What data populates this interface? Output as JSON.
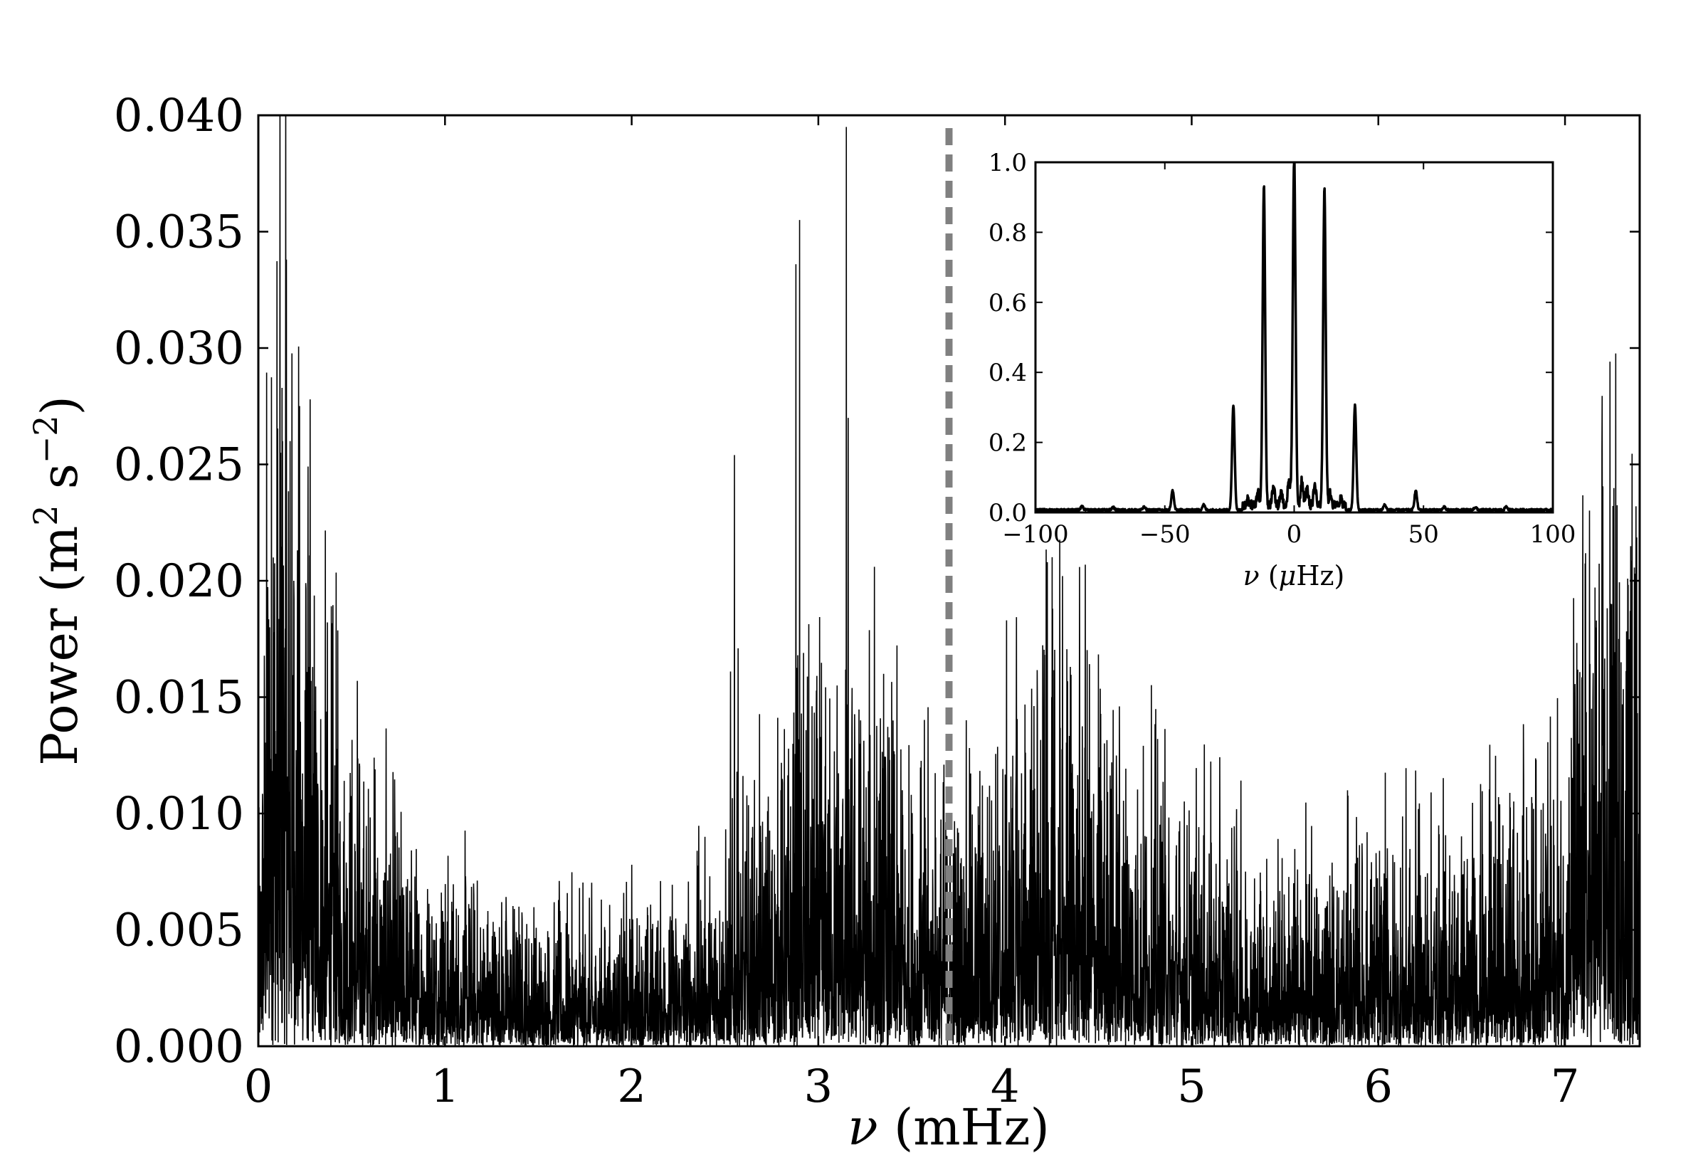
{
  "chart_data": [
    {
      "type": "line",
      "role": "main",
      "title": "",
      "xlabel": {
        "symbol": "ν",
        "rest": " (mHz)"
      },
      "ylabel": {
        "prefix": "Power (m",
        "sup1": "2",
        "mid": " s",
        "sup2": "−2",
        "suffix": ")"
      },
      "xlim": [
        0,
        7.4
      ],
      "ylim": [
        0,
        0.04
      ],
      "xticks": [
        0,
        1,
        2,
        3,
        4,
        5,
        6,
        7
      ],
      "xtick_labels": [
        "0",
        "1",
        "2",
        "3",
        "4",
        "5",
        "6",
        "7"
      ],
      "yticks": [
        0,
        0.005,
        0.01,
        0.015,
        0.02,
        0.025,
        0.03,
        0.035,
        0.04
      ],
      "ytick_labels": [
        "0.000",
        "0.005",
        "0.010",
        "0.015",
        "0.020",
        "0.025",
        "0.030",
        "0.035",
        "0.040"
      ],
      "grid": false,
      "line_color": "#000000",
      "marker_line": {
        "x": 3.7,
        "style": "dashed",
        "color": "#808080"
      },
      "envelope": [
        [
          0.0,
          0.002
        ],
        [
          0.05,
          0.01
        ],
        [
          0.1,
          0.012
        ],
        [
          0.2,
          0.009
        ],
        [
          0.35,
          0.006
        ],
        [
          0.55,
          0.004
        ],
        [
          0.8,
          0.0028
        ],
        [
          1.2,
          0.0022
        ],
        [
          1.6,
          0.0018
        ],
        [
          2.0,
          0.0018
        ],
        [
          2.3,
          0.0022
        ],
        [
          2.6,
          0.003
        ],
        [
          2.9,
          0.0045
        ],
        [
          3.2,
          0.005
        ],
        [
          3.5,
          0.0038
        ],
        [
          3.8,
          0.0035
        ],
        [
          4.1,
          0.005
        ],
        [
          4.35,
          0.0055
        ],
        [
          4.6,
          0.0045
        ],
        [
          5.0,
          0.0032
        ],
        [
          5.5,
          0.0025
        ],
        [
          6.0,
          0.0028
        ],
        [
          6.3,
          0.003
        ],
        [
          6.7,
          0.0032
        ],
        [
          7.0,
          0.004
        ],
        [
          7.05,
          0.006
        ],
        [
          7.2,
          0.008
        ],
        [
          7.4,
          0.008
        ]
      ],
      "peaks": [
        [
          0.06,
          0.018
        ],
        [
          0.08,
          0.021
        ],
        [
          0.1,
          0.023
        ],
        [
          0.12,
          0.0255
        ],
        [
          0.13,
          0.026
        ],
        [
          0.15,
          0.0338
        ],
        [
          0.17,
          0.026
        ],
        [
          0.19,
          0.02
        ],
        [
          0.22,
          0.0188
        ],
        [
          0.25,
          0.0153
        ],
        [
          0.3,
          0.012
        ],
        [
          0.34,
          0.011
        ],
        [
          0.4,
          0.0095
        ],
        [
          0.46,
          0.0098
        ],
        [
          0.5,
          0.01
        ],
        [
          0.53,
          0.0157
        ],
        [
          0.62,
          0.0124
        ],
        [
          0.7,
          0.0078
        ],
        [
          0.78,
          0.0065
        ],
        [
          0.98,
          0.0066
        ],
        [
          1.4,
          0.0048
        ],
        [
          1.72,
          0.0068
        ],
        [
          2.0,
          0.0078
        ],
        [
          2.2,
          0.005
        ],
        [
          2.45,
          0.0055
        ],
        [
          2.53,
          0.0161
        ],
        [
          2.55,
          0.0254
        ],
        [
          2.57,
          0.0171
        ],
        [
          2.7,
          0.006
        ],
        [
          2.8,
          0.011
        ],
        [
          2.88,
          0.0336
        ],
        [
          2.89,
          0.0168
        ],
        [
          2.9,
          0.0355
        ],
        [
          2.92,
          0.0169
        ],
        [
          3.0,
          0.0085
        ],
        [
          3.05,
          0.01
        ],
        [
          3.1,
          0.0155
        ],
        [
          3.15,
          0.0395
        ],
        [
          3.16,
          0.027
        ],
        [
          3.22,
          0.013
        ],
        [
          3.3,
          0.0206
        ],
        [
          3.35,
          0.016
        ],
        [
          3.4,
          0.014
        ],
        [
          3.45,
          0.011
        ],
        [
          3.5,
          0.0095
        ],
        [
          3.56,
          0.0065
        ],
        [
          3.69,
          0.008
        ],
        [
          3.86,
          0.0095
        ],
        [
          4.06,
          0.013
        ],
        [
          4.15,
          0.011
        ],
        [
          4.25,
          0.015
        ],
        [
          4.35,
          0.0163
        ],
        [
          4.45,
          0.011
        ],
        [
          4.55,
          0.009
        ],
        [
          4.65,
          0.008
        ],
        [
          4.85,
          0.007
        ],
        [
          5.0,
          0.0075
        ],
        [
          5.2,
          0.007
        ],
        [
          5.45,
          0.0058
        ],
        [
          5.7,
          0.005
        ],
        [
          5.85,
          0.0047
        ],
        [
          6.05,
          0.006
        ],
        [
          6.15,
          0.0064
        ],
        [
          6.3,
          0.0058
        ],
        [
          6.7,
          0.0085
        ],
        [
          6.8,
          0.008
        ],
        [
          6.9,
          0.0075
        ],
        [
          7.05,
          0.013
        ],
        [
          7.1,
          0.0125
        ],
        [
          7.15,
          0.015
        ],
        [
          7.2,
          0.014
        ],
        [
          7.25,
          0.019
        ],
        [
          7.3,
          0.0165
        ],
        [
          7.33,
          0.016
        ],
        [
          7.35,
          0.017
        ],
        [
          7.38,
          0.0232
        ],
        [
          7.4,
          0.015
        ]
      ]
    },
    {
      "type": "line",
      "role": "inset",
      "title": "",
      "xlabel": {
        "symbol": "ν",
        "rest_pre": " (",
        "unit_symbol": "μ",
        "unit_rest": "Hz)"
      },
      "ylabel": "",
      "xlim": [
        -100,
        100
      ],
      "ylim": [
        0,
        1
      ],
      "xticks": [
        -100,
        -50,
        0,
        50,
        100
      ],
      "xtick_labels": [
        "−100",
        "−50",
        "0",
        "50",
        "100"
      ],
      "yticks": [
        0,
        0.2,
        0.4,
        0.6,
        0.8,
        1.0
      ],
      "ytick_labels": [
        "0.0",
        "0.2",
        "0.4",
        "0.6",
        "0.8",
        "1.0"
      ],
      "grid": false,
      "line_color": "#000000",
      "peaks": [
        [
          -82,
          0.01
        ],
        [
          -70,
          0.008
        ],
        [
          -58,
          0.008
        ],
        [
          -47,
          0.055
        ],
        [
          -35,
          0.015
        ],
        [
          -23.5,
          0.3
        ],
        [
          -18,
          0.02
        ],
        [
          -14,
          0.035
        ],
        [
          -11.7,
          0.91
        ],
        [
          -8,
          0.06
        ],
        [
          -5,
          0.04
        ],
        [
          -2,
          0.07
        ],
        [
          0,
          1.0
        ],
        [
          3,
          0.07
        ],
        [
          5,
          0.05
        ],
        [
          8,
          0.06
        ],
        [
          11.7,
          0.91
        ],
        [
          14,
          0.035
        ],
        [
          18,
          0.02
        ],
        [
          23.5,
          0.3
        ],
        [
          35,
          0.015
        ],
        [
          47,
          0.055
        ],
        [
          58,
          0.008
        ],
        [
          70,
          0.008
        ],
        [
          82,
          0.01
        ]
      ]
    }
  ]
}
